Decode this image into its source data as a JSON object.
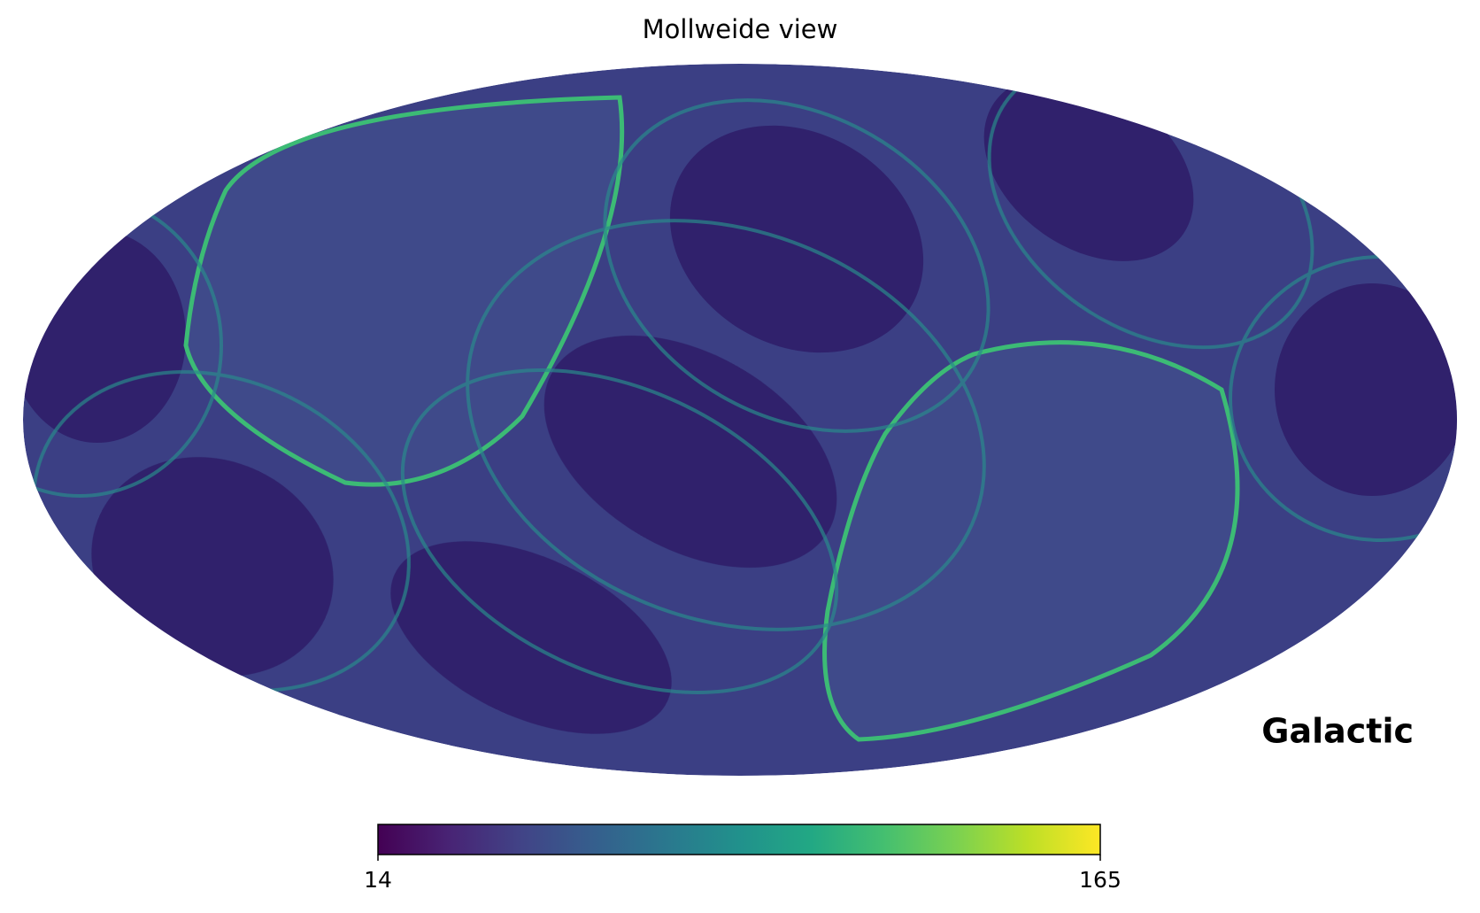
{
  "chart_data": {
    "type": "mollweide",
    "title": "Mollweide view",
    "coord_label": "Galactic",
    "colormap": "viridis",
    "clim": [
      14,
      165
    ],
    "cticks": [
      14,
      165
    ]
  }
}
